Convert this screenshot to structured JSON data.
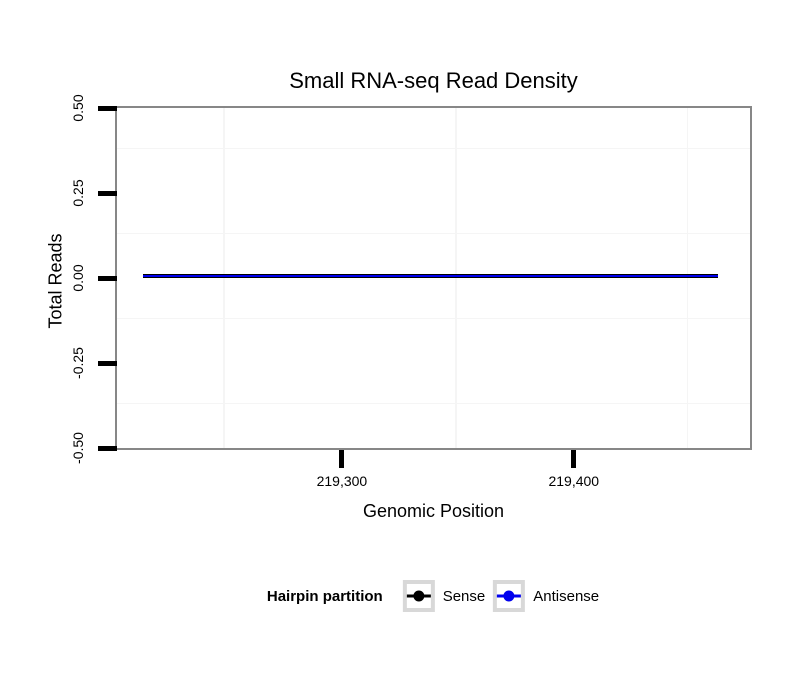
{
  "figure": {
    "title": "Small RNA-seq Read Density",
    "x_axis": {
      "label": "Genomic Position",
      "tick_labels": [
        "219,300",
        "219,400"
      ]
    },
    "y_axis": {
      "label": "Total Reads",
      "tick_labels": [
        "0.50",
        "0.25",
        "0.00",
        "-0.25",
        "-0.50"
      ]
    },
    "legend": {
      "title": "Hairpin partition",
      "entries": [
        {
          "label": "Sense",
          "color": "#000000"
        },
        {
          "label": "Antisense",
          "color": "#0000EE"
        }
      ]
    }
  },
  "chart_data": {
    "type": "line",
    "title": "Small RNA-seq Read Density",
    "xlabel": "Genomic Position",
    "ylabel": "Total Reads",
    "xlim": [
      219203,
      219476
    ],
    "ylim": [
      -0.5,
      0.5
    ],
    "x_ticks": [
      {
        "value": 219300,
        "label": "219,300"
      },
      {
        "value": 219400,
        "label": "219,400"
      }
    ],
    "y_ticks": [
      {
        "value": 0.5,
        "label": "0.50"
      },
      {
        "value": 0.25,
        "label": "0.25"
      },
      {
        "value": 0,
        "label": "0.00"
      },
      {
        "value": -0.25,
        "label": "-0.25"
      },
      {
        "value": -0.5,
        "label": "-0.50"
      }
    ],
    "x_minor_gridlines": [
      219250,
      219350,
      219450
    ],
    "y_minor_gridlines": [
      0.375,
      0.125,
      -0.125,
      -0.375
    ],
    "grid": "minor-only",
    "grid_color": "#f5f5f5",
    "panel_border_color": "#878787",
    "panel_background": "#ffffff",
    "series": [
      {
        "name": "Sense",
        "color": "#000000",
        "x": [
          219215,
          219463
        ],
        "y": [
          0,
          0
        ],
        "linewidth": 4
      },
      {
        "name": "Antisense",
        "color": "#0000EE",
        "x": [
          219215,
          219463
        ],
        "y": [
          0,
          0
        ],
        "linewidth": 1.8
      }
    ],
    "legend_title": "Hairpin partition",
    "legend_position": "bottom"
  }
}
